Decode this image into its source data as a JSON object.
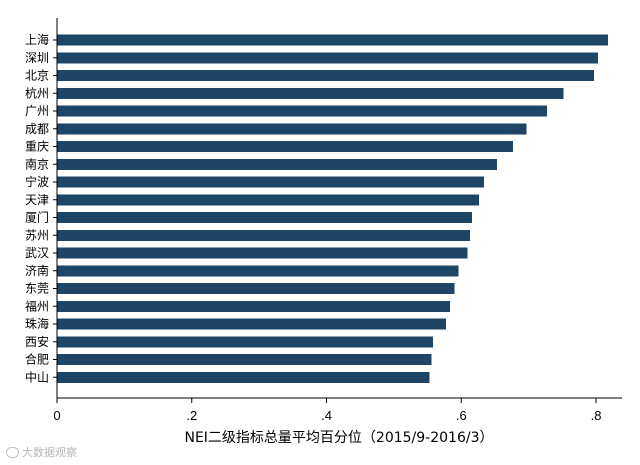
{
  "chart_data": {
    "type": "bar",
    "orientation": "horizontal",
    "categories": [
      "上海",
      "深圳",
      "北京",
      "杭州",
      "广州",
      "成都",
      "重庆",
      "南京",
      "宁波",
      "天津",
      "厦门",
      "苏州",
      "武汉",
      "济南",
      "东莞",
      "福州",
      "珠海",
      "西安",
      "合肥",
      "中山"
    ],
    "values": [
      0.818,
      0.803,
      0.797,
      0.752,
      0.727,
      0.697,
      0.677,
      0.653,
      0.634,
      0.626,
      0.616,
      0.613,
      0.609,
      0.596,
      0.59,
      0.583,
      0.577,
      0.558,
      0.556,
      0.553
    ],
    "xlabel": "NEI二级指标总量平均百分位（2015/9-2016/3）",
    "ylabel": "",
    "xlim": [
      0,
      0.84
    ],
    "xticks": [
      0,
      0.2,
      0.4,
      0.6,
      0.8
    ],
    "xtick_labels": [
      "0",
      ".2",
      ".4",
      ".6",
      ".8"
    ],
    "grid": false,
    "bar_color": "#1e4466"
  },
  "watermark": {
    "icon": "speech-bubble-icon",
    "text": "大数据观察"
  }
}
